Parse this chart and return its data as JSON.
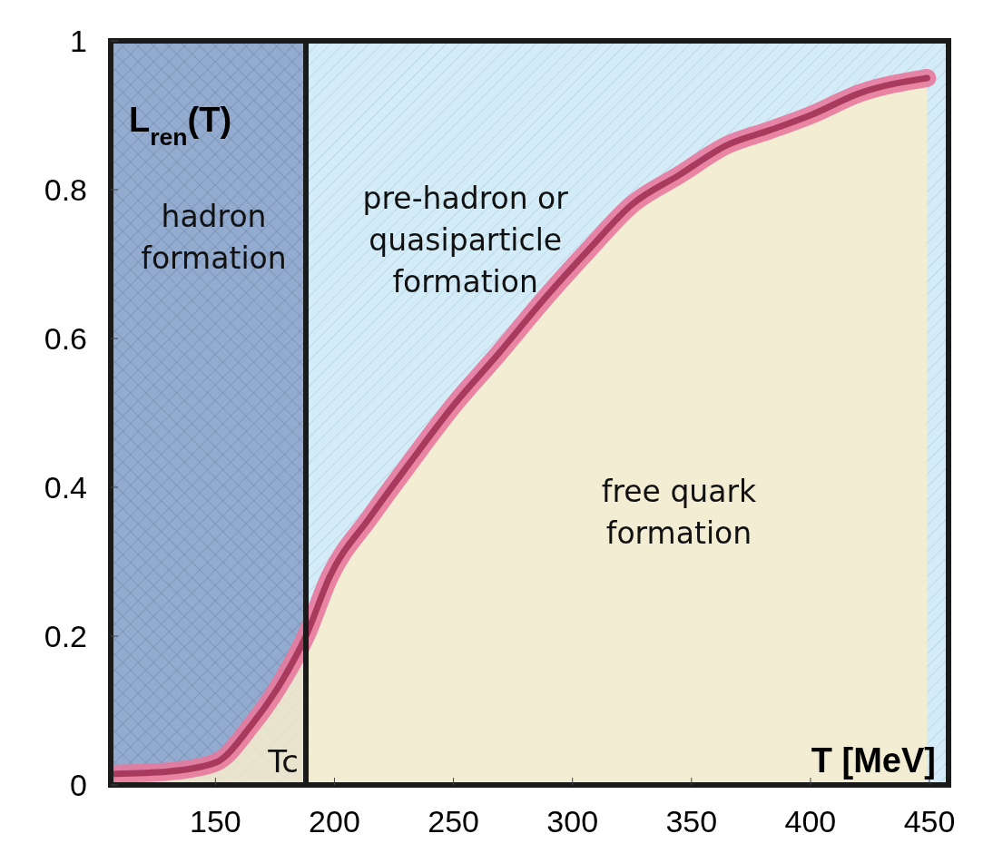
{
  "chart_data": {
    "type": "line",
    "xlabel": "T [MeV]",
    "ylabel": "L$_{ren}$(T)",
    "xlim": [
      106,
      458
    ],
    "ylim": [
      0,
      1
    ],
    "xticks": [
      150,
      200,
      250,
      300,
      350,
      400,
      450
    ],
    "yticks": [
      0,
      0.2,
      0.4,
      0.6,
      0.8,
      1
    ],
    "grid": false,
    "line_style": "solid",
    "x": [
      108,
      130,
      150,
      165,
      178,
      188,
      198,
      215,
      231,
      250,
      269,
      290,
      307,
      325,
      345,
      365,
      383,
      400,
      421,
      449
    ],
    "series": [
      {
        "type": "area",
        "color": "#f8edcc",
        "values": [
          0.015,
          0.018,
          0.03,
          0.08,
          0.14,
          0.2,
          0.28,
          0.36,
          0.43,
          0.51,
          0.58,
          0.66,
          0.72,
          0.78,
          0.82,
          0.86,
          0.88,
          0.9,
          0.93,
          0.95
        ]
      }
    ],
    "bands": [
      {
        "axis": "x",
        "from": 106,
        "to": 188,
        "label": "hadron\nformation",
        "color": "#93abcf"
      },
      {
        "axis": "x",
        "from": 188,
        "to": 458,
        "label": "pre-hadron or\nquasiparticle\nformation",
        "color": "#d3ecf8"
      }
    ],
    "ref_lines": [
      {
        "axis": "x",
        "value": 188,
        "label": "Tc"
      }
    ],
    "annotations": [
      "free quark\nformation"
    ]
  }
}
